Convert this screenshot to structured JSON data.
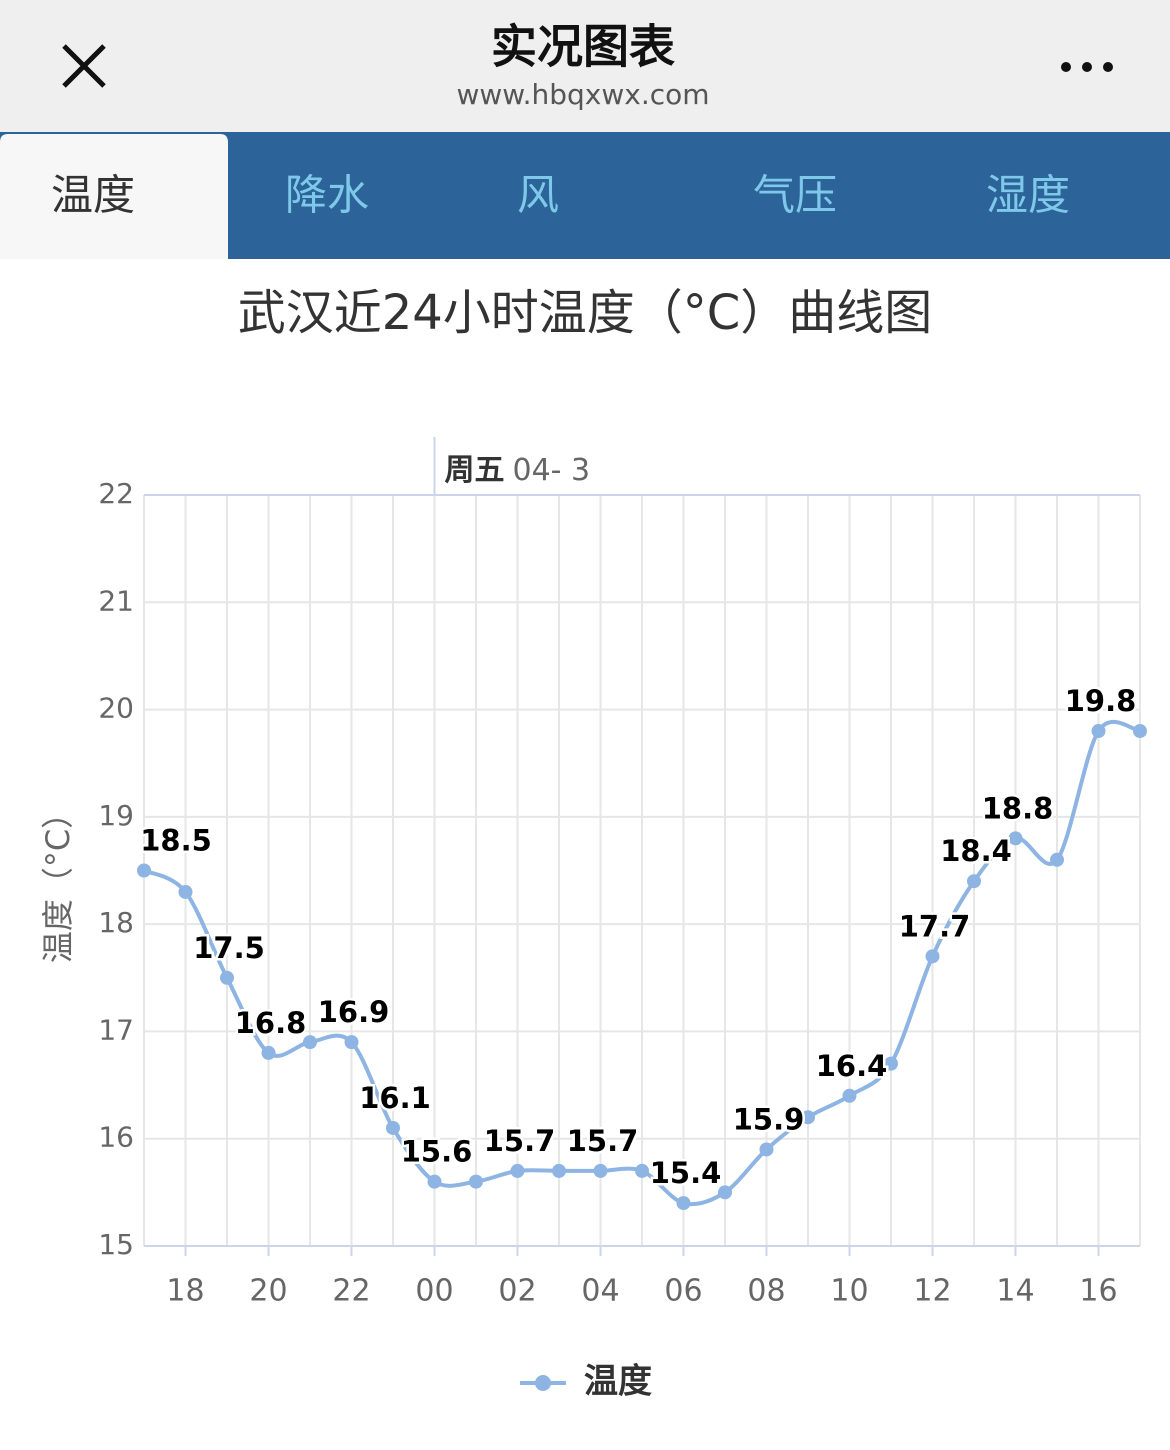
{
  "header": {
    "title": "实况图表",
    "url": "www.hbqxwx.com"
  },
  "tabs": {
    "items": [
      "温度",
      "降水",
      "风",
      "气压",
      "湿度"
    ],
    "active": 0
  },
  "chart_data": {
    "type": "line",
    "title": "武汉近24小时温度（°C）曲线图",
    "y_label": "温度（°C）",
    "annotation": {
      "label": "周五",
      "text": "04- 3"
    },
    "categories": [
      null,
      "18",
      null,
      "20",
      null,
      "22",
      null,
      "00",
      null,
      "02",
      null,
      "04",
      null,
      "06",
      null,
      "08",
      null,
      "10",
      null,
      "12",
      null,
      "14",
      null,
      "16",
      null
    ],
    "series": [
      {
        "name": "温度",
        "color": "#8db4e2",
        "values": [
          18.5,
          18.3,
          17.5,
          16.8,
          16.9,
          16.9,
          16.1,
          15.6,
          15.6,
          15.7,
          15.7,
          15.7,
          15.7,
          15.4,
          15.5,
          15.9,
          16.2,
          16.4,
          16.7,
          17.7,
          18.4,
          18.8,
          18.6,
          19.8,
          19.8
        ],
        "value_labels": [
          "18.5",
          null,
          "17.5",
          "16.8",
          null,
          "16.9",
          "16.1",
          "15.6",
          null,
          "15.7",
          null,
          "15.7",
          null,
          "15.4",
          null,
          "15.9",
          null,
          "16.4",
          null,
          "17.7",
          "18.4",
          "18.8",
          null,
          "19.8",
          null
        ]
      }
    ],
    "ylim": [
      15,
      22
    ],
    "yticks": [
      15,
      16,
      17,
      18,
      19,
      20,
      21,
      22
    ],
    "grid": true
  }
}
